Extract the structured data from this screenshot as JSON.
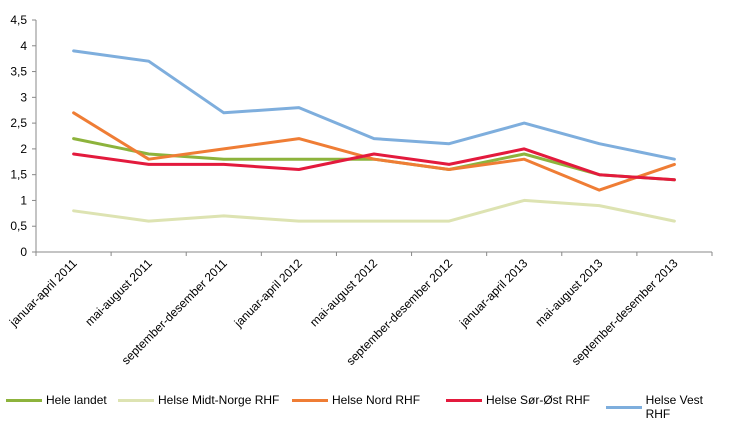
{
  "chart_data": {
    "type": "line",
    "categories": [
      "januar-april 2011",
      "mai-august 2011",
      "september-desember 2011",
      "januar-april 2012",
      "mai-august 2012",
      "september-desember 2012",
      "januar-april 2013",
      "mai-august 2013",
      "september-desember 2013"
    ],
    "ylim": [
      0,
      4.5
    ],
    "yticks": [
      "0",
      "0,5",
      "1",
      "1,5",
      "2",
      "2,5",
      "3",
      "3,5",
      "4",
      "4,5"
    ],
    "grid": false,
    "legend_position": "bottom",
    "series": [
      {
        "name": "Hele landet",
        "color": "#8db33c",
        "values": [
          2.2,
          1.9,
          1.8,
          1.8,
          1.8,
          1.6,
          1.9,
          1.5,
          1.4
        ]
      },
      {
        "name": "Helse Midt-Norge RHF",
        "color": "#dde3b2",
        "values": [
          0.8,
          0.6,
          0.7,
          0.6,
          0.6,
          0.6,
          1.0,
          0.9,
          0.6
        ]
      },
      {
        "name": "Helse Nord RHF",
        "color": "#ef7d35",
        "values": [
          2.7,
          1.8,
          2.0,
          2.2,
          1.8,
          1.6,
          1.8,
          1.2,
          1.7
        ]
      },
      {
        "name": "Helse Sør-Øst RHF",
        "color": "#e31a3d",
        "values": [
          1.9,
          1.7,
          1.7,
          1.6,
          1.9,
          1.7,
          2.0,
          1.5,
          1.4
        ]
      },
      {
        "name": "Helse Vest RHF",
        "color": "#7eaedd",
        "values": [
          3.9,
          3.7,
          2.7,
          2.8,
          2.2,
          2.1,
          2.5,
          2.1,
          1.8
        ]
      }
    ]
  }
}
